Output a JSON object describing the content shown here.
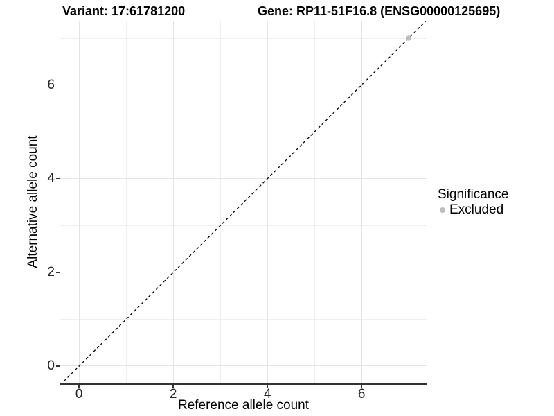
{
  "chart_data": {
    "type": "scatter",
    "title_left": "Variant: 17:61781200",
    "title_right": "Gene: RP11-51F16.8 (ENSG00000125695)",
    "xlabel": "Reference allele count",
    "ylabel": "Alternative allele count",
    "xlim": [
      -0.4,
      7.38
    ],
    "ylim": [
      -0.37,
      7.37
    ],
    "x_ticks": [
      0,
      2,
      4,
      6
    ],
    "y_ticks": [
      0,
      2,
      4,
      6
    ],
    "x_minor": [
      1,
      3,
      5,
      7
    ],
    "y_minor": [
      1,
      3,
      5,
      7
    ],
    "grid": {
      "show": true,
      "major_color": "#e4e4e4",
      "minor_color": "#efefef"
    },
    "identity_line": {
      "slope": 1,
      "intercept": 0,
      "style": "dashed",
      "color": "#000000"
    },
    "points": [
      {
        "x": 7,
        "y": 7,
        "significance": "Excluded",
        "color": "#bdbdbd",
        "radius": 3.7
      }
    ],
    "legend": {
      "position": "right",
      "title": "Significance",
      "items": [
        {
          "label": "Excluded",
          "color": "#bdbdbd",
          "marker": "circle"
        }
      ]
    },
    "axis_line_color": "#333333"
  }
}
